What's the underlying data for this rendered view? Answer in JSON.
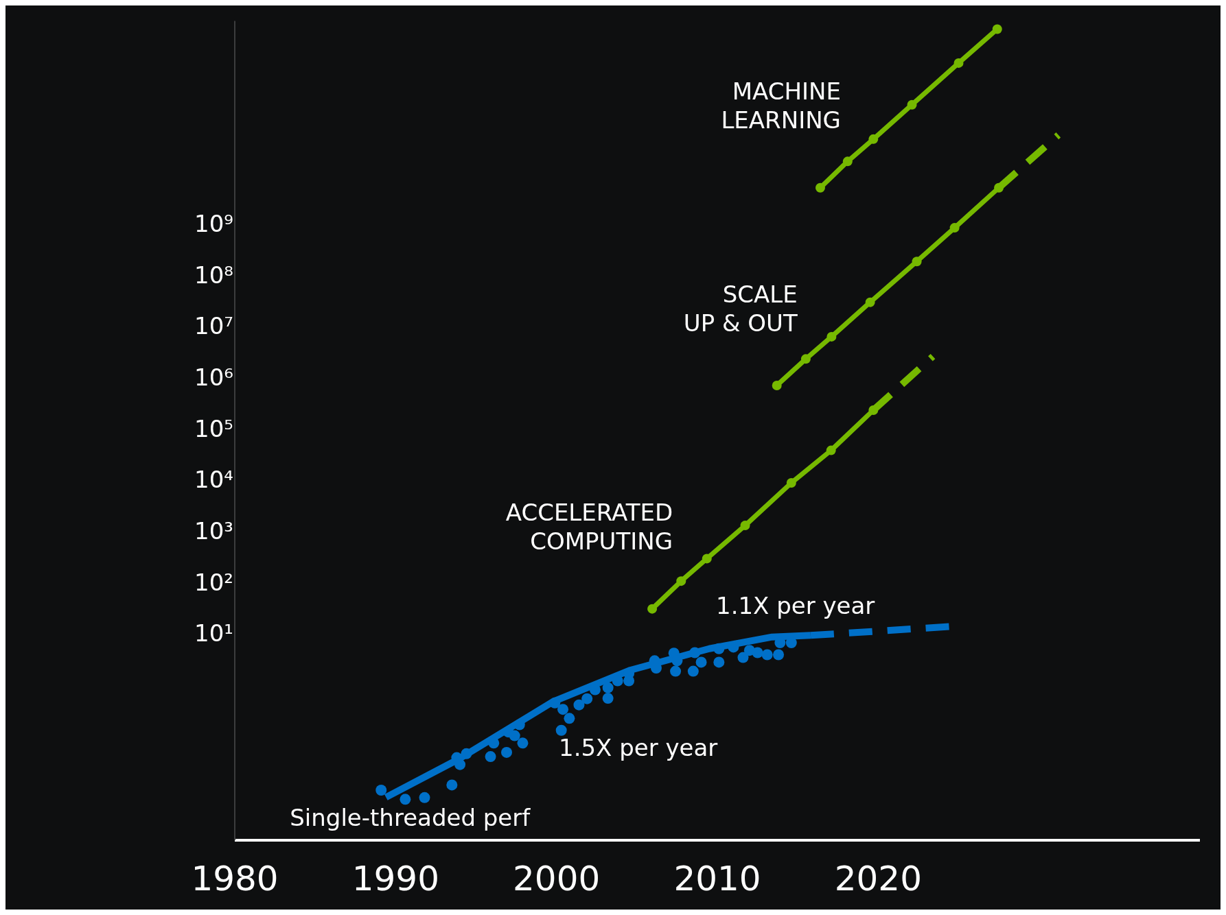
{
  "chart_data": {
    "type": "line",
    "log": "y",
    "grid": false,
    "legend": false,
    "xlim": [
      1980,
      2040
    ],
    "xticks": [
      1980,
      1990,
      2000,
      2010,
      2020
    ],
    "ylim": [
      0.001,
      10000000000000.0
    ],
    "yticks": [
      {
        "value": 10,
        "label": "10¹"
      },
      {
        "value": 100,
        "label": "10²"
      },
      {
        "value": 1000,
        "label": "10³"
      },
      {
        "value": 10000,
        "label": "10⁴"
      },
      {
        "value": 100000,
        "label": "10⁵"
      },
      {
        "value": 1000000,
        "label": "10⁶"
      },
      {
        "value": 10000000,
        "label": "10⁷"
      },
      {
        "value": 100000000,
        "label": "10⁸"
      },
      {
        "value": 1000000000,
        "label": "10⁹"
      }
    ],
    "series": [
      {
        "name": "Single-threaded perf",
        "type": "scatter",
        "marker": "circle",
        "color": "#0070c8",
        "x": [
          1989.1,
          1990.6,
          1991.8,
          1993.5,
          1993.8,
          1994.0,
          1994.4,
          1995.9,
          1996.1,
          1996.9,
          1997.0,
          1997.4,
          1997.7,
          1997.9,
          1999.9,
          2000.3,
          2000.4,
          2000.8,
          2001.4,
          2001.9,
          2002.4,
          2003.2,
          2003.2,
          2003.8,
          2004.5,
          2004.5,
          2006.1,
          2006.2,
          2007.3,
          2007.4,
          2007.5,
          2008.5,
          2008.6,
          2009.0,
          2010.1,
          2010.1,
          2011.0,
          2011.6,
          2012.0,
          2012.5,
          2013.1,
          2013.8,
          2013.9,
          2014.6
        ],
        "values": [
          0.0095,
          0.0063,
          0.0068,
          0.012,
          0.041,
          0.03,
          0.049,
          0.043,
          0.079,
          0.052,
          0.13,
          0.11,
          0.18,
          0.079,
          0.48,
          0.14,
          0.36,
          0.24,
          0.44,
          0.58,
          0.87,
          0.59,
          0.95,
          1.3,
          1.8,
          1.3,
          3.2,
          2.3,
          4.5,
          2,
          3.2,
          2,
          4.6,
          3,
          3,
          5.5,
          5.9,
          3.7,
          5.1,
          4.6,
          4.2,
          4.2,
          7.2,
          7.2
        ]
      },
      {
        "marker": "none",
        "line_style": "solid",
        "color": "#0070c8",
        "x": [
          1989.4,
          1993.9,
          1999.8,
          2004.6,
          2009.5,
          2013.4,
          2015.8
        ],
        "values": [
          0.0069,
          0.038,
          0.51,
          2.1,
          5.5,
          9.3,
          10
        ]
      },
      {
        "marker": "none",
        "line_style": "dashed",
        "color": "#0070c8",
        "x": [
          2015.8,
          2024.65
        ],
        "values": [
          10,
          15
        ]
      },
      {
        "name": "ACCELERATED COMPUTING",
        "marker": "circle",
        "line_style": "solid",
        "color": "#76b900",
        "x": [
          2005.95,
          2007.75,
          2009.35,
          2011.73,
          2014.6,
          2017.07,
          2019.7
        ],
        "values": [
          33,
          115,
          316,
          1400,
          9500,
          41000,
          250000
        ]
      },
      {
        "marker": "none",
        "line_style": "dashed",
        "color": "#76b900",
        "x": [
          2019.7,
          2023.4
        ],
        "values": [
          250000,
          2800000
        ]
      },
      {
        "name": "SCALE UP & OUT",
        "marker": "circle",
        "line_style": "solid",
        "color": "#76b900",
        "x": [
          2013.7,
          2015.5,
          2017.1,
          2019.5,
          2022.4,
          2024.75,
          2027.5
        ],
        "values": [
          760000,
          2500000,
          6800000,
          32000000,
          200000000,
          910000000,
          5500000000
        ]
      },
      {
        "marker": "none",
        "line_style": "dashed",
        "color": "#76b900",
        "x": [
          2027.5,
          2031.2
        ],
        "values": [
          5500000000,
          59000000000
        ]
      },
      {
        "name": "MACHINE LEARNING",
        "marker": "circle",
        "line_style": "solid",
        "color": "#76b900",
        "x": [
          2016.4,
          2018.1,
          2019.7,
          2022.1,
          2025.0,
          2027.4
        ],
        "values": [
          5500000000,
          18000000000,
          49000000000,
          230000000000,
          1500000000000,
          6900000000000
        ]
      }
    ],
    "annotations": [
      "1.1X per year",
      "1.5X per year"
    ]
  }
}
